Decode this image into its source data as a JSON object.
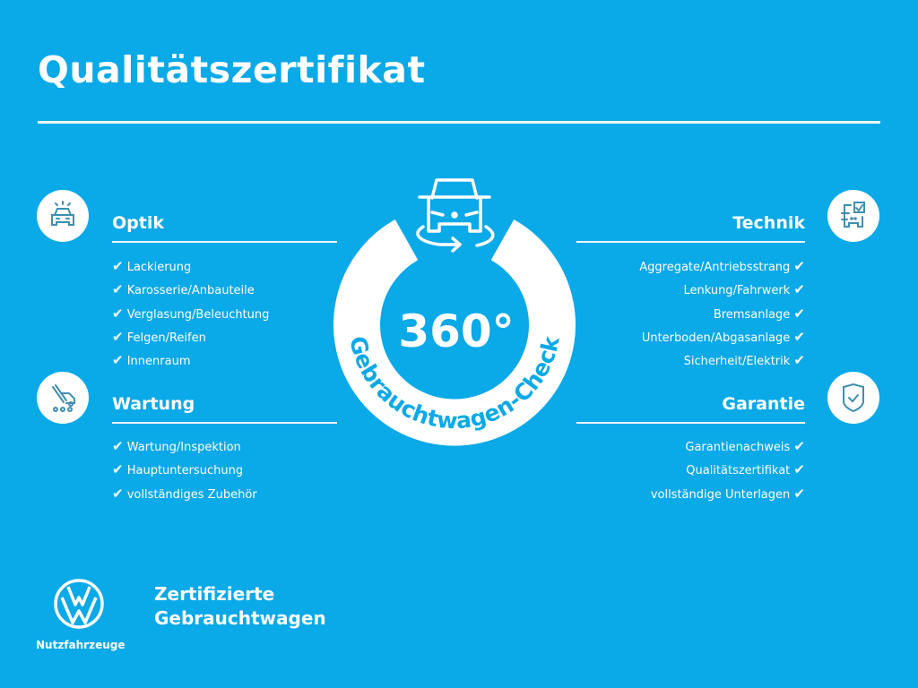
{
  "title": "Qualitätszertifikat",
  "colors": {
    "background": "#0aa9e8",
    "foreground": "#ffffff",
    "icon": "#3f8fb0"
  },
  "center": {
    "value": "360°",
    "label": "Gebrauchtwagen-Check",
    "icon": "car-rotate-icon"
  },
  "sections": {
    "optik": {
      "heading": "Optik",
      "icon": "car-lights-icon",
      "items": [
        "Lackierung",
        "Karosserie/Anbauteile",
        "Verglasung/Beleuchtung",
        "Felgen/Reifen",
        "Innenraum"
      ]
    },
    "wartung": {
      "heading": "Wartung",
      "icon": "service-tools-icon",
      "items": [
        "Wartung/Inspektion",
        "Hauptuntersuchung",
        "vollständiges Zubehör"
      ]
    },
    "technik": {
      "heading": "Technik",
      "icon": "car-checklist-icon",
      "items": [
        "Aggregate/Antriebsstrang",
        "Lenkung/Fahrwerk",
        "Bremsanlage",
        "Unterboden/Abgasanlage",
        "Sicherheit/Elektrik"
      ]
    },
    "garantie": {
      "heading": "Garantie",
      "icon": "shield-check-icon",
      "items": [
        "Garantienachweis",
        "Qualitätszertifikat",
        "vollständige Unterlagen"
      ]
    }
  },
  "check_mark": "✔",
  "footer": {
    "brand_line1": "Zertifizierte",
    "brand_line2": "Gebrauchtwagen",
    "logo_caption": "Nutzfahrzeuge",
    "logo": "vw-logo"
  }
}
